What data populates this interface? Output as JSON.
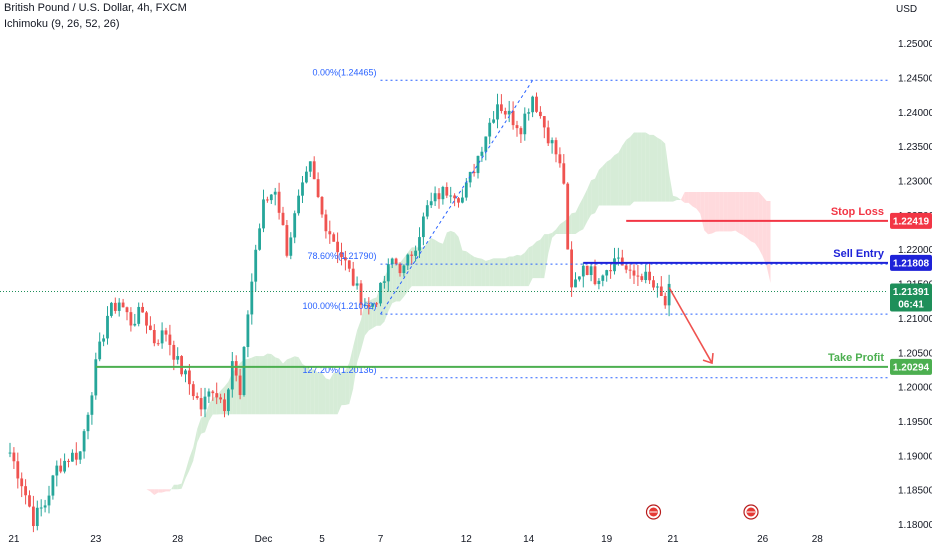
{
  "header": {
    "title": "British Pound / U.S. Dollar, 4h, FXCM",
    "indicator": "Ichimoku (9, 26, 52, 26)",
    "currency": "USD"
  },
  "colors": {
    "up": "#26a69a",
    "down": "#ef5350",
    "stop_loss": "#f23645",
    "sell_entry": "#1e22d8",
    "take_profit": "#4caf50",
    "fib": "#2962ff",
    "cloud_green": "#c8e6c9",
    "cloud_red": "#ffcdd2",
    "live_price": "#1e8f5a"
  },
  "chart_data": {
    "type": "candlestick",
    "symbol": "GBPUSD",
    "timeframe": "4h",
    "y_ticks": [
      1.25,
      1.245,
      1.24,
      1.235,
      1.23,
      1.225,
      1.22,
      1.215,
      1.21,
      1.205,
      1.2,
      1.195,
      1.19,
      1.185,
      1.18
    ],
    "y_tick_labels": [
      "1.25000",
      "1.24500",
      "1.24000",
      "1.23500",
      "1.23000",
      "1.22500",
      "1.22000",
      "1.21500",
      "1.21000",
      "1.20500",
      "1.20000",
      "1.19500",
      "1.19000",
      "1.18500",
      "1.18000"
    ],
    "ylim": [
      1.1795,
      1.2543
    ],
    "x_labels": [
      "21",
      "23",
      "28",
      "Dec",
      "5",
      "7",
      "12",
      "14",
      "19",
      "21",
      "26",
      "28"
    ],
    "x_label_index": [
      1,
      22,
      43,
      65,
      80,
      95,
      117,
      133,
      153,
      170,
      193,
      207
    ],
    "candle_count": 170,
    "ohlc_anchors": [
      [
        0,
        1.1905
      ],
      [
        3,
        1.1862
      ],
      [
        6,
        1.1808
      ],
      [
        9,
        1.183
      ],
      [
        12,
        1.1882
      ],
      [
        15,
        1.1898
      ],
      [
        18,
        1.1905
      ],
      [
        22,
        1.203
      ],
      [
        25,
        1.2105
      ],
      [
        28,
        1.2125
      ],
      [
        31,
        1.2095
      ],
      [
        34,
        1.211
      ],
      [
        37,
        1.2068
      ],
      [
        40,
        1.208
      ],
      [
        43,
        1.2035
      ],
      [
        46,
        1.2005
      ],
      [
        49,
        1.197
      ],
      [
        52,
        1.2
      ],
      [
        55,
        1.1975
      ],
      [
        57,
        1.204
      ],
      [
        59,
        1.1985
      ],
      [
        61,
        1.211
      ],
      [
        63,
        1.22
      ],
      [
        65,
        1.2265
      ],
      [
        68,
        1.229
      ],
      [
        71,
        1.22
      ],
      [
        74,
        1.227
      ],
      [
        77,
        1.232
      ],
      [
        80,
        1.225
      ],
      [
        83,
        1.2215
      ],
      [
        86,
        1.218
      ],
      [
        89,
        1.214
      ],
      [
        92,
        1.2115
      ],
      [
        95,
        1.214
      ],
      [
        98,
        1.2185
      ],
      [
        101,
        1.217
      ],
      [
        104,
        1.221
      ],
      [
        107,
        1.226
      ],
      [
        110,
        1.228
      ],
      [
        113,
        1.229
      ],
      [
        116,
        1.2275
      ],
      [
        119,
        1.232
      ],
      [
        122,
        1.237
      ],
      [
        125,
        1.2415
      ],
      [
        128,
        1.2395
      ],
      [
        131,
        1.238
      ],
      [
        134,
        1.2425
      ],
      [
        137,
        1.238
      ],
      [
        140,
        1.234
      ],
      [
        142,
        1.23
      ],
      [
        143,
        1.219
      ],
      [
        144,
        1.214
      ],
      [
        147,
        1.218
      ],
      [
        150,
        1.216
      ],
      [
        153,
        1.2175
      ],
      [
        156,
        1.219
      ],
      [
        159,
        1.216
      ],
      [
        162,
        1.2165
      ],
      [
        165,
        1.2145
      ],
      [
        168,
        1.212
      ],
      [
        169,
        1.2139
      ]
    ],
    "levels": {
      "stop_loss": {
        "label": "Stop Loss",
        "value": "1.22419",
        "price": 1.22419
      },
      "sell_entry": {
        "label": "Sell Entry",
        "value": "1.21808",
        "price": 1.21808
      },
      "take_profit": {
        "label": "Take Profit",
        "value": "1.20294",
        "price": 1.20294
      }
    },
    "live_price": {
      "value": "1.21391",
      "countdown": "06:41",
      "price": 1.21391
    },
    "fibonacci": {
      "levels": [
        {
          "label": "0.00%(1.24465)",
          "price": 1.24465
        },
        {
          "label": "78.60%(1.21790)",
          "price": 1.2179
        },
        {
          "label": "100.00%(1.21062)",
          "price": 1.21062
        },
        {
          "label": "127.20%(1.20136)",
          "price": 1.20136
        }
      ]
    },
    "arrow": {
      "direction": "down",
      "from": 1.2145,
      "to": 1.2035
    }
  }
}
